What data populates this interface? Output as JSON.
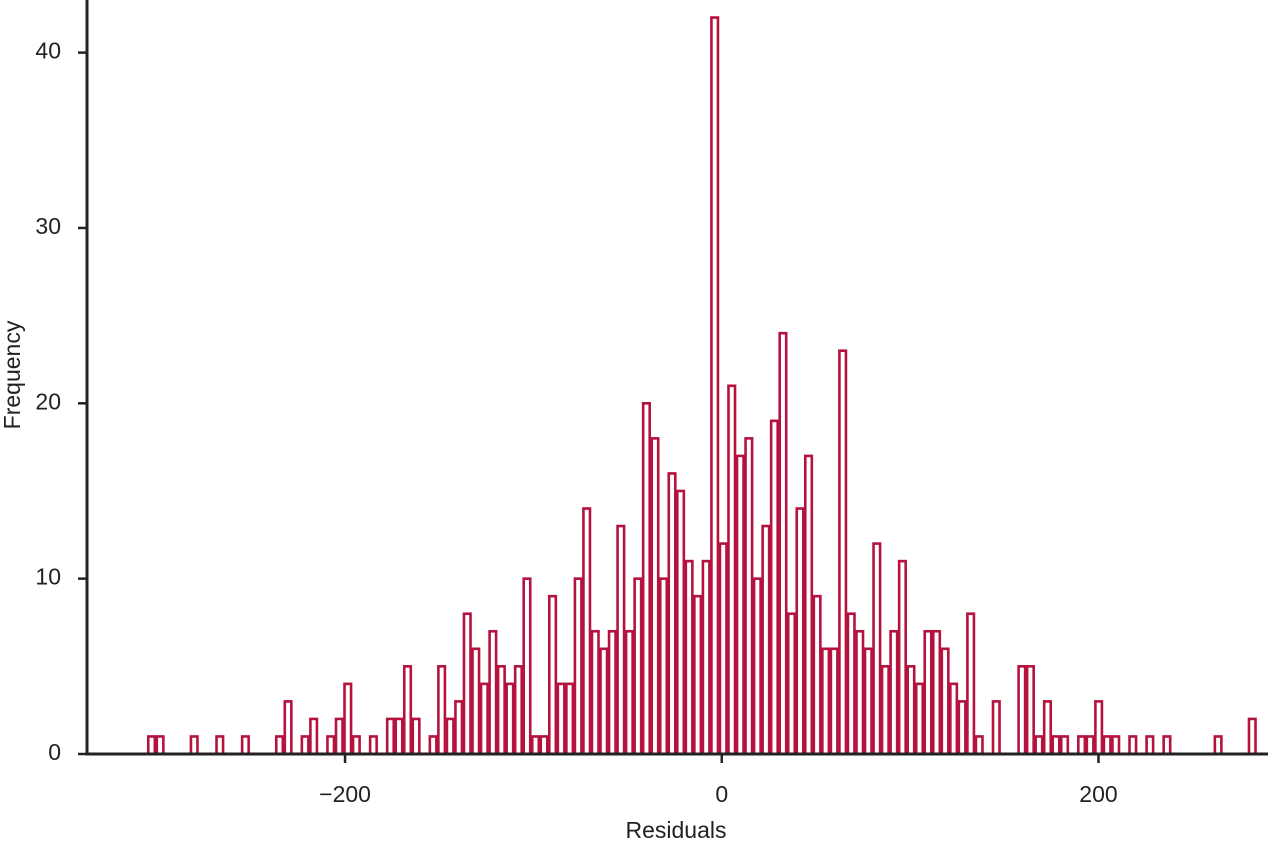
{
  "chart_data": {
    "type": "histogram",
    "xlabel": "Residuals",
    "ylabel": "Frequency",
    "color": "#b5123e",
    "xlim": [
      -337,
      290
    ],
    "ylim": [
      0,
      43
    ],
    "xticks": [
      {
        "value": -200,
        "label": "−200"
      },
      0,
      200
    ],
    "yticks": [
      0,
      10,
      20,
      30,
      40
    ],
    "bins": [
      -305.0,
      -300.47,
      -295.94,
      -291.41,
      -286.88,
      -282.35,
      -277.82,
      -273.29,
      -268.76,
      -264.23,
      -259.7,
      -255.17,
      -250.64,
      -246.11,
      -241.58,
      -237.05,
      -232.52,
      -227.99,
      -223.46,
      -218.93,
      -214.4,
      -209.87,
      -205.34,
      -200.81,
      -196.28,
      -191.75,
      -187.22,
      -182.69,
      -178.16,
      -173.63,
      -169.1,
      -164.57,
      -160.04,
      -155.51,
      -150.98,
      -146.45,
      -141.92,
      -137.39,
      -132.86,
      -128.33,
      -123.8,
      -119.27,
      -114.74,
      -110.21,
      -105.68,
      -101.15,
      -96.62,
      -92.09,
      -87.56,
      -83.03,
      -78.5,
      -73.97,
      -69.44,
      -64.91,
      -60.38,
      -55.85,
      -51.32,
      -46.79,
      -42.26,
      -37.73,
      -33.2,
      -28.67,
      -24.14,
      -19.61,
      -15.08,
      -10.55,
      -6.02,
      -1.49,
      3.04,
      7.57,
      12.1,
      16.63,
      21.16,
      25.69,
      30.22,
      34.75,
      39.28,
      43.81,
      48.34,
      52.87,
      57.4,
      61.93,
      66.46,
      70.99,
      75.52,
      80.05,
      84.58,
      89.11,
      93.64,
      98.17,
      102.7,
      107.23,
      111.76,
      116.29,
      120.82,
      125.35,
      129.88,
      134.41,
      138.94,
      143.47,
      148.0,
      152.53,
      157.06,
      161.59,
      166.12,
      170.65,
      175.18,
      179.71,
      184.24,
      188.77,
      193.3,
      197.83,
      202.36,
      206.89,
      211.42,
      215.95,
      220.48,
      225.01,
      229.54,
      234.07,
      238.6,
      243.13,
      247.66,
      252.19,
      256.72,
      261.25,
      265.78,
      270.31,
      274.84,
      279.37,
      283.9
    ],
    "values": [
      1,
      1,
      0,
      0,
      0,
      1,
      0,
      0,
      1,
      0,
      0,
      1,
      0,
      0,
      0,
      1,
      3,
      0,
      1,
      2,
      0,
      1,
      2,
      4,
      1,
      0,
      1,
      0,
      2,
      2,
      5,
      2,
      0,
      1,
      5,
      2,
      3,
      8,
      6,
      4,
      7,
      5,
      4,
      5,
      10,
      1,
      1,
      9,
      4,
      4,
      10,
      14,
      7,
      6,
      7,
      13,
      7,
      10,
      20,
      18,
      10,
      16,
      15,
      11,
      9,
      11,
      42,
      12,
      21,
      17,
      18,
      10,
      13,
      19,
      24,
      8,
      14,
      17,
      9,
      6,
      6,
      23,
      8,
      7,
      6,
      12,
      5,
      7,
      11,
      5,
      4,
      7,
      7,
      6,
      4,
      3,
      8,
      1,
      0,
      3,
      0,
      0,
      5,
      5,
      1,
      3,
      1,
      1,
      0,
      1,
      1,
      3,
      1,
      1,
      0,
      1,
      0,
      1,
      0,
      1,
      0,
      0,
      0,
      0,
      0,
      1,
      0,
      0,
      0,
      2
    ]
  }
}
